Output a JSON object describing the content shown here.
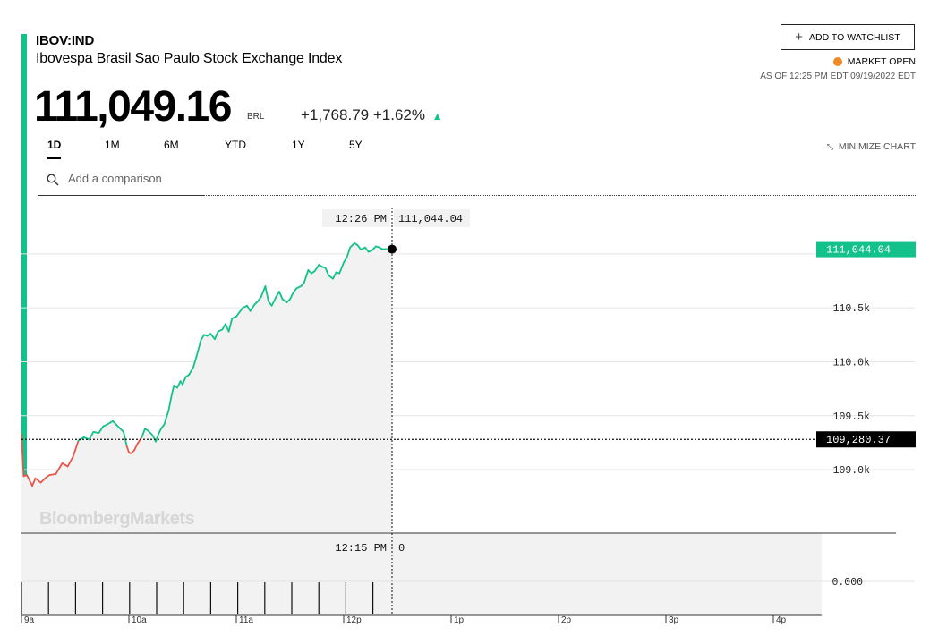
{
  "header": {
    "ticker": "IBOV:IND",
    "name": "Ibovespa Brasil Sao Paulo Stock Exchange Index",
    "price": "111,049.16",
    "currency": "BRL",
    "change": "+1,768.79",
    "change_pct": "+1.62%",
    "change_arrow": "▲"
  },
  "watchlist_label": "ADD TO WATCHLIST",
  "market_status": "MARKET OPEN",
  "as_of": "AS OF 12:25 PM EDT 09/19/2022 EDT",
  "tabs": [
    "1D",
    "1M",
    "6M",
    "YTD",
    "1Y",
    "5Y"
  ],
  "active_tab": "1D",
  "minimize_label": "MINIMIZE CHART",
  "compare_placeholder": "Add a comparison",
  "watermark": "BloombergMarkets",
  "colors": {
    "up": "#12c28a",
    "down": "#e8564a",
    "orange": "#f08a24",
    "area_fill": "#f2f2f2"
  },
  "chart_data": {
    "type": "line",
    "price_axis_ticks": [
      "110.5k",
      "110.0k",
      "109.5k",
      "109.0k"
    ],
    "price_axis_values": [
      110500,
      110000,
      109500,
      109000
    ],
    "ylim": [
      108420,
      111480
    ],
    "x_ticks": [
      "9a",
      "10a",
      "11a",
      "12p",
      "1p",
      "2p",
      "3p",
      "4p"
    ],
    "x_tick_hours": [
      9,
      10,
      11,
      12,
      13,
      14,
      15,
      16
    ],
    "xlim_hours": [
      9,
      16.45
    ],
    "previous_close": 109280.37,
    "previous_close_label": "109,280.37",
    "last_value": 111044.04,
    "last_value_label": "111,044.04",
    "crosshair_time": "12:26 PM",
    "crosshair_value": "111,044.04",
    "volume_crosshair_time": "12:15 PM",
    "volume_crosshair_value": "0",
    "volume_axis_tick": "0.000",
    "series": [
      {
        "x": [
          9.0,
          9.02,
          9.05,
          9.1,
          9.13,
          9.18,
          9.22,
          9.26,
          9.32,
          9.38,
          9.43,
          9.48,
          9.53,
          9.58,
          9.63,
          9.67,
          9.72,
          9.76,
          9.8,
          9.85,
          9.88,
          9.92,
          9.95,
          9.98,
          10.0,
          10.02,
          10.05,
          10.08,
          10.12,
          10.15,
          10.18,
          10.22,
          10.25,
          10.28,
          10.3,
          10.33,
          10.37,
          10.4,
          10.42,
          10.45,
          10.48,
          10.5,
          10.53,
          10.56,
          10.6,
          10.63,
          10.67,
          10.7,
          10.73,
          10.76,
          10.8,
          10.83,
          10.87,
          10.9,
          10.93,
          10.96,
          11.0,
          11.03,
          11.06,
          11.1,
          11.13,
          11.17,
          11.2,
          11.23,
          11.27,
          11.3,
          11.33,
          11.37,
          11.4,
          11.43,
          11.47,
          11.5,
          11.53,
          11.56,
          11.6,
          11.63,
          11.67,
          11.7,
          11.73,
          11.77,
          11.8,
          11.83,
          11.86,
          11.9,
          11.93,
          11.96,
          12.0,
          12.03,
          12.06,
          12.1,
          12.13,
          12.16,
          12.2,
          12.23,
          12.26,
          12.3,
          12.33,
          12.36,
          12.4,
          12.43,
          12.45
        ],
        "values": [
          109330,
          108940,
          108950,
          108850,
          108920,
          108880,
          108920,
          108950,
          108960,
          109060,
          109030,
          109120,
          109270,
          109300,
          109280,
          109350,
          109340,
          109400,
          109420,
          109450,
          109420,
          109380,
          109350,
          109220,
          109160,
          109150,
          109180,
          109240,
          109300,
          109380,
          109360,
          109320,
          109260,
          109340,
          109380,
          109420,
          109550,
          109700,
          109780,
          109760,
          109820,
          109790,
          109860,
          109880,
          109950,
          110050,
          110200,
          110250,
          110240,
          110260,
          110210,
          110280,
          110300,
          110350,
          110280,
          110400,
          110420,
          110460,
          110500,
          110520,
          110470,
          110530,
          110560,
          110600,
          110700,
          110560,
          110520,
          110600,
          110650,
          110580,
          110550,
          110580,
          110640,
          110680,
          110700,
          110730,
          110850,
          110820,
          110840,
          110900,
          110880,
          110870,
          110800,
          110770,
          110830,
          110820,
          110920,
          110970,
          111060,
          111100,
          111080,
          111040,
          111060,
          111020,
          111030,
          111070,
          111060,
          111044,
          111044,
          111044,
          111044
        ]
      }
    ]
  }
}
